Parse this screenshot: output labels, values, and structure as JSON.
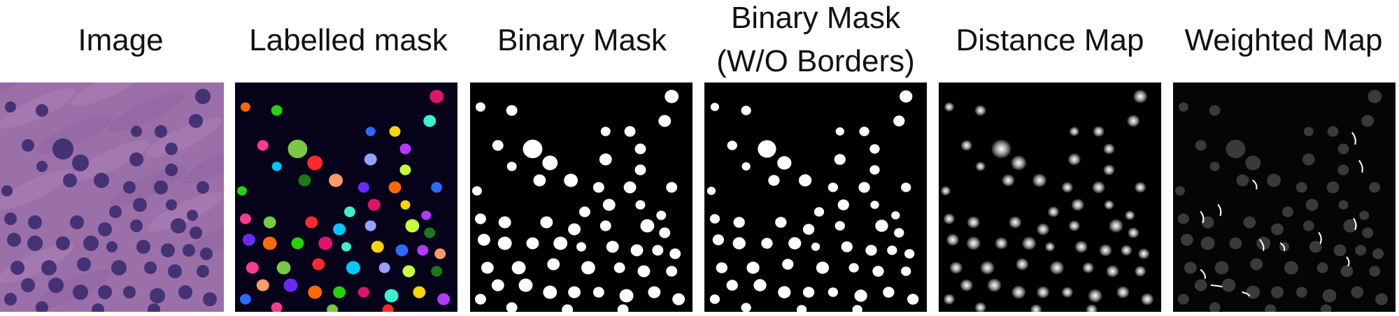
{
  "figure": {
    "panels": [
      {
        "id": "image",
        "label": "Image"
      },
      {
        "id": "labelled-mask",
        "label": "Labelled mask"
      },
      {
        "id": "binary-mask",
        "label": "Binary Mask"
      },
      {
        "id": "binary-mask-wo-borders",
        "label_line1": "Binary Mask",
        "label_line2": "(W/O Borders)"
      },
      {
        "id": "distance-map",
        "label": "Distance Map"
      },
      {
        "id": "weighted-map",
        "label": "Weighted Map"
      }
    ]
  },
  "colors": {
    "tissue": "#9b6fa8",
    "nucleus": "#3c2c70",
    "mask_bg": "#000000",
    "labelled_bg": "#05021a",
    "mask_fg": "#ffffff",
    "weighted_cell": "#3a3a3a",
    "label_palette": [
      "#ff6a00",
      "#23d400",
      "#e0146a",
      "#3cf0d0",
      "#ffd500",
      "#2b6bff",
      "#b43bff",
      "#ff3b8f",
      "#7ac943",
      "#ff2a2a",
      "#00c8ff",
      "#9aa0ff",
      "#c8ff3b",
      "#1a7a1a",
      "#ff9a6a",
      "#6a2aff"
    ]
  }
}
